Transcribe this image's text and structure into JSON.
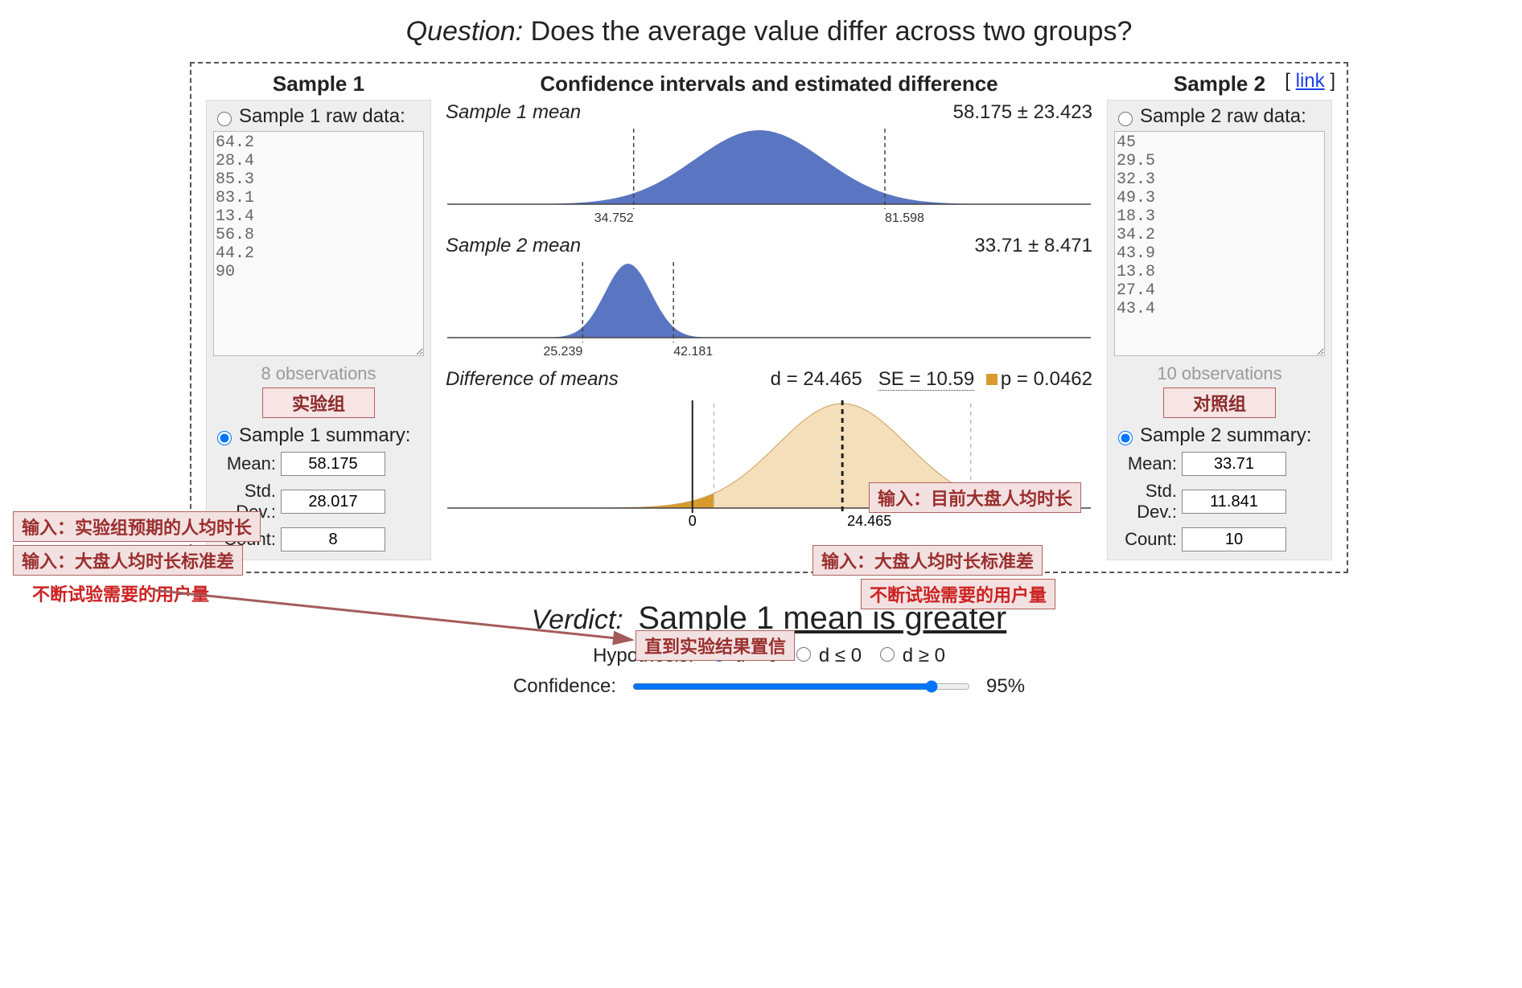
{
  "colors": {
    "dist_fill": "#5a76c2",
    "diff_fill": "#f5deba",
    "diff_tail": "#d99a2e",
    "axis": "#444444",
    "dash": "#444444",
    "panel_bg": "#eeeeee",
    "badge_bg": "#f7e4e4",
    "badge_border": "#b85b5b",
    "badge_text": "#8a2a2a",
    "link": "#1a3ee8",
    "arrow": "#a45b5b"
  },
  "title": {
    "label": "Question:",
    "text": "Does the average value differ across two groups?"
  },
  "link_text": "link",
  "mid_header": "Confidence intervals and estimated difference",
  "sample1": {
    "header": "Sample 1",
    "raw_label": "Sample 1 raw data:",
    "raw_text": "64.2\n28.4\n85.3\n83.1\n13.4\n56.8\n44.2\n90",
    "obs_text": "8 observations",
    "badge": "实验组",
    "summary_label": "Sample 1 summary:",
    "mean_label": "Mean:",
    "mean": "58.175",
    "std_label": "Std. Dev.:",
    "std": "28.017",
    "count_label": "Count:",
    "count": "8",
    "raw_selected": false,
    "summary_selected": true
  },
  "sample2": {
    "header": "Sample 2",
    "raw_label": "Sample 2 raw data:",
    "raw_text": "45\n29.5\n32.3\n49.3\n18.3\n34.2\n43.9\n13.8\n27.4\n43.4",
    "obs_text": "10 observations",
    "badge": "对照组",
    "summary_label": "Sample 2 summary:",
    "mean_label": "Mean:",
    "mean": "33.71",
    "std_label": "Std. Dev.:",
    "std": "11.841",
    "count_label": "Count:",
    "count": "10",
    "raw_selected": false,
    "summary_selected": true
  },
  "dist1": {
    "label": "Sample 1 mean",
    "value_text": "58.175 ± 23.423",
    "x_domain": [
      0,
      120
    ],
    "mean": 58.175,
    "sigma": 12,
    "ci_lo": 34.752,
    "ci_hi": 81.598,
    "fill": "#5a76c2"
  },
  "dist2": {
    "label": "Sample 2 mean",
    "value_text": "33.71 ± 8.471",
    "x_domain": [
      0,
      120
    ],
    "mean": 33.71,
    "sigma": 4.3,
    "ci_lo": 25.239,
    "ci_hi": 42.181,
    "fill": "#5a76c2"
  },
  "diff": {
    "label": "Difference of means",
    "d_text": "d = 24.465",
    "se_text": "SE = 10.59",
    "p_text": "p = 0.0462",
    "x_domain": [
      -40,
      65
    ],
    "mean": 24.465,
    "sigma": 10.59,
    "zero_label": "0",
    "d_label": "24.465",
    "tail_cut_lo": 3.5,
    "tail_cut_hi": 45.4,
    "fill": "#f5deba",
    "tail_fill": "#d99a2e"
  },
  "annotations": {
    "a1": "输入：实验组预期的人均时长",
    "a2": "输入：大盘人均时长标准差",
    "a3": "不断试验需要的用户量",
    "a4": "输入：目前大盘人均时长",
    "a5": "输入：大盘人均时长标准差",
    "a6": "不断试验需要的用户量",
    "a7": "直到实验结果置信"
  },
  "verdict": {
    "label": "Verdict:",
    "text": "Sample 1 mean is greater"
  },
  "hypothesis": {
    "label": "Hypothesis:",
    "opt1": "d = 0",
    "opt2": "d ≤ 0",
    "opt3": "d ≥ 0",
    "selected": 0
  },
  "confidence": {
    "label": "Confidence:",
    "value": 95,
    "display": "95%",
    "min": 50,
    "max": 100
  }
}
